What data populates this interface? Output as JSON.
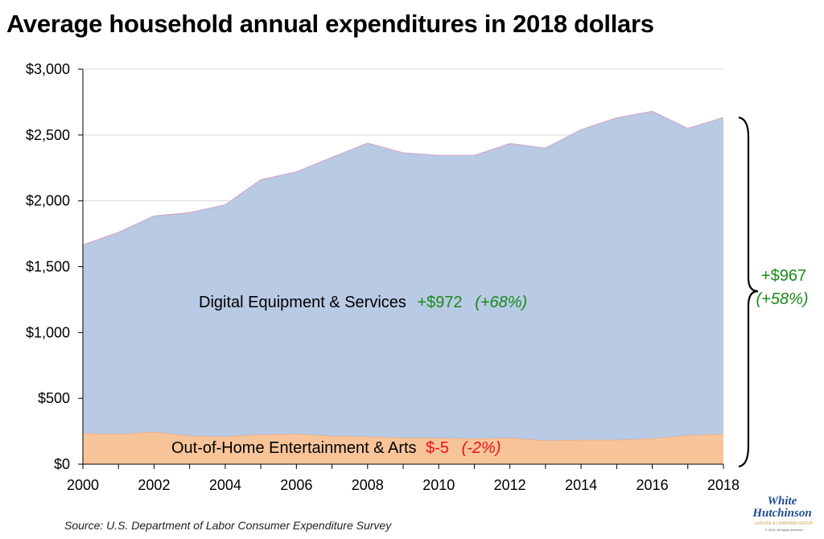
{
  "title": "Average household annual expenditures in 2018 dollars",
  "source": "Source: U.S. Department of Labor Consumer Expenditure Survey",
  "logo": {
    "line1": "White",
    "line2": "Hutchinson",
    "tagline": "LEISURE & LEARNING GROUP",
    "copyright": "© 2019, All rights reserved"
  },
  "colors": {
    "digital": "#b8cae4",
    "entertainment": "#f7c49a",
    "positive": "#1a8a1a",
    "negative": "#e8131b"
  },
  "chart_data": {
    "type": "area",
    "stacked": true,
    "x": [
      2000,
      2001,
      2002,
      2003,
      2004,
      2005,
      2006,
      2007,
      2008,
      2009,
      2010,
      2011,
      2012,
      2013,
      2014,
      2015,
      2016,
      2017,
      2018
    ],
    "xticks": [
      "2000",
      "2002",
      "2004",
      "2006",
      "2008",
      "2010",
      "2012",
      "2014",
      "2016",
      "2018"
    ],
    "yticks": [
      "$0",
      "$500",
      "$1,000",
      "$1,500",
      "$2,000",
      "$2,500",
      "$3,000"
    ],
    "ylim": [
      0,
      3000
    ],
    "series": [
      {
        "name": "Out-of-Home Entertainment & Arts",
        "values": [
          235,
          228,
          245,
          215,
          210,
          225,
          230,
          215,
          210,
          200,
          200,
          195,
          200,
          180,
          185,
          185,
          195,
          220,
          230
        ]
      },
      {
        "name": "Digital Equipment & Services",
        "values": [
          1430,
          1532,
          1640,
          1695,
          1760,
          1935,
          1990,
          2115,
          2228,
          2165,
          2145,
          2150,
          2235,
          2220,
          2355,
          2445,
          2485,
          2330,
          2402
        ]
      }
    ],
    "annotations": {
      "digital_change": "+$972",
      "digital_pct": "(+68%)",
      "ent_change": "$-5",
      "ent_pct": "(-2%)",
      "total_change": "+$967",
      "total_pct": "(+58%)"
    }
  }
}
